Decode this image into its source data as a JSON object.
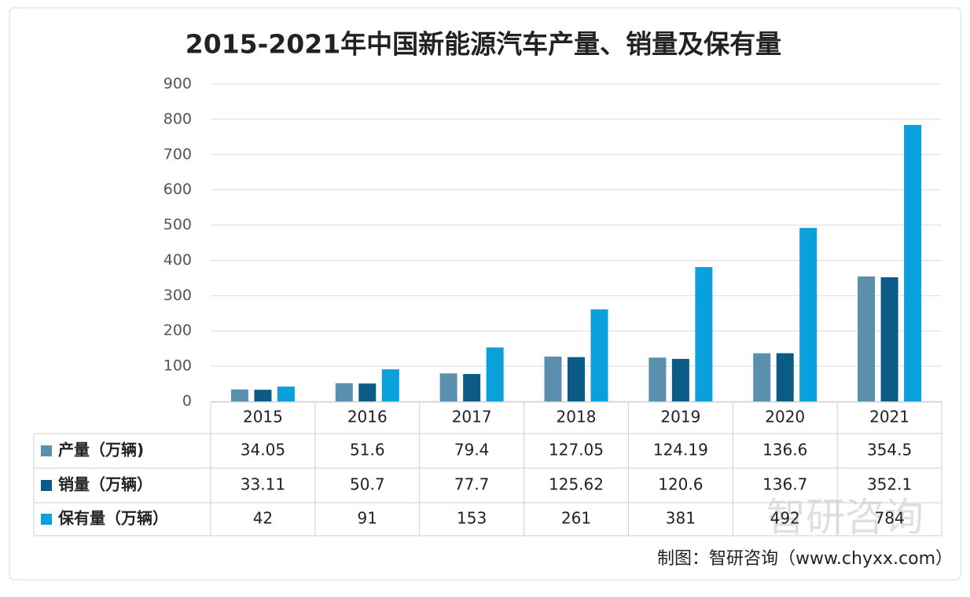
{
  "chart_data": {
    "type": "bar",
    "title": "2015-2021年中国新能源汽车产量、销量及保有量",
    "categories": [
      "2015",
      "2016",
      "2017",
      "2018",
      "2019",
      "2020",
      "2021"
    ],
    "series": [
      {
        "name": "产量（万辆)",
        "color": "#5b8fae",
        "values": [
          34.05,
          51.6,
          79.4,
          127.05,
          124.19,
          136.6,
          354.5
        ]
      },
      {
        "name": "销量（万辆）",
        "color": "#0c5a86",
        "values": [
          33.11,
          50.7,
          77.7,
          125.62,
          120.6,
          136.7,
          352.1
        ]
      },
      {
        "name": "保有量（万辆）",
        "color": "#0aa0dc",
        "values": [
          42,
          91,
          153,
          261,
          381,
          492,
          784
        ]
      }
    ],
    "ylim": [
      0,
      900
    ],
    "yticks": [
      0,
      100,
      200,
      300,
      400,
      500,
      600,
      700,
      800,
      900
    ],
    "grid": true,
    "source": "制图：智研咨询（www.chyxx.com）",
    "watermark": "智研咨询"
  }
}
